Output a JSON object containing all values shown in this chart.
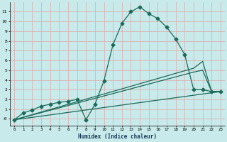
{
  "xlabel": "Humidex (Indice chaleur)",
  "bg_color": "#c8eaea",
  "grid_color": "#e0a8a8",
  "line_color": "#1a6b5a",
  "xlim": [
    -0.5,
    23.5
  ],
  "ylim": [
    -0.7,
    12.0
  ],
  "xticks": [
    0,
    1,
    2,
    3,
    4,
    5,
    6,
    7,
    8,
    9,
    10,
    11,
    12,
    13,
    14,
    15,
    16,
    17,
    18,
    19,
    20,
    21,
    22,
    23
  ],
  "yticks": [
    0,
    1,
    2,
    3,
    4,
    5,
    6,
    7,
    8,
    9,
    10,
    11
  ],
  "ytick_labels": [
    "-0",
    "1",
    "2",
    "3",
    "4",
    "5",
    "6",
    "7",
    "8",
    "9",
    "10",
    "11"
  ],
  "curve1_x": [
    0,
    1,
    2,
    3,
    4,
    5,
    6,
    7,
    8,
    9,
    10,
    11,
    12,
    13,
    14,
    15,
    16,
    17,
    18,
    19,
    20,
    21,
    22,
    23
  ],
  "curve1_y": [
    -0.1,
    0.6,
    0.9,
    1.3,
    1.5,
    1.7,
    1.8,
    2.0,
    -0.1,
    1.5,
    3.9,
    7.6,
    9.8,
    11.0,
    11.5,
    10.8,
    10.3,
    9.4,
    8.2,
    6.6,
    3.0,
    3.0,
    2.8,
    2.8
  ],
  "curve2_x": [
    0,
    20,
    21,
    22,
    23
  ],
  "curve2_y": [
    -0.1,
    5.2,
    5.9,
    2.8,
    2.8
  ],
  "curve3_x": [
    0,
    20,
    21,
    22,
    23
  ],
  "curve3_y": [
    -0.1,
    4.8,
    5.0,
    2.8,
    2.8
  ],
  "curve4_x": [
    0,
    23
  ],
  "curve4_y": [
    -0.1,
    2.8
  ],
  "marker_size": 2.5,
  "line_width": 0.9
}
